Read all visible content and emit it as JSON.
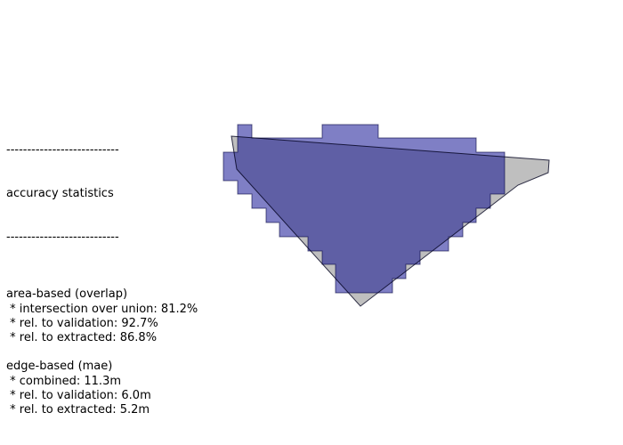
{
  "header": {
    "rule_top": "---------------------------",
    "title": "accuracy statistics",
    "rule_bottom": "---------------------------"
  },
  "sections": [
    {
      "heading": "area-based (overlap)",
      "items": [
        " * intersection over union: 81.2%",
        " * rel. to validation: 92.7%",
        " * rel. to extracted: 86.8%"
      ]
    },
    {
      "heading": "edge-based (mae)",
      "items": [
        " * combined: 11.3m",
        " * rel. to validation: 6.0m",
        " * rel. to extracted: 5.2m"
      ]
    }
  ]
}
